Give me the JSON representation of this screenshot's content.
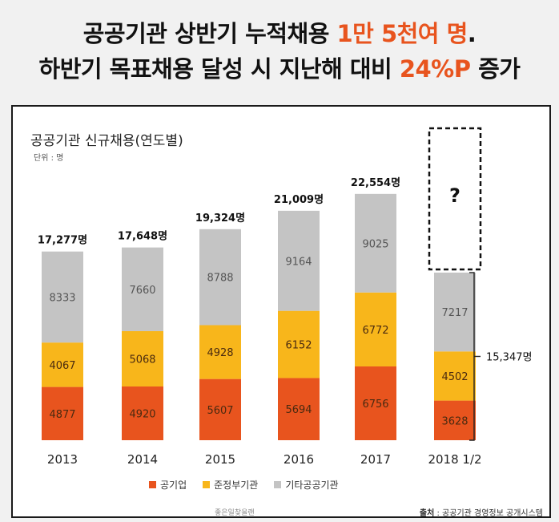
{
  "headline": {
    "line1_prefix": "공공기관 상반기 누적채용 ",
    "line1_accent": "1만 5천여 명",
    "line1_suffix": ".",
    "line2_prefix": "하반기 목표채용 달성 시 지난해 대비 ",
    "line2_accent": "24%P",
    "line2_suffix": " 증가"
  },
  "unit_label": "단위 : 명",
  "watermark": "좋은일찾을랜",
  "source": {
    "label": "출처",
    "text": " : 공공기관 경영정보 공개시스템"
  },
  "colors": {
    "public_enterprise": "#e8541e",
    "quasi_government": "#f8b61b",
    "other_public": "#c4c4c4",
    "accent": "#e8541e"
  },
  "chart_data": {
    "type": "bar",
    "stacked": true,
    "title": "공공기관 신규채용(연도별)",
    "xlabel": "",
    "ylabel": "",
    "ylim": [
      0,
      24000
    ],
    "categories": [
      "2013",
      "2014",
      "2015",
      "2016",
      "2017",
      "2018 1/2"
    ],
    "totals": [
      "17,277명",
      "17,648명",
      "19,324명",
      "21,009명",
      "22,554명",
      ""
    ],
    "series": [
      {
        "name": "공기업",
        "values": [
          4877,
          4920,
          5607,
          5694,
          6756,
          3628
        ]
      },
      {
        "name": "준정부기관",
        "values": [
          4067,
          5068,
          4928,
          6152,
          6772,
          4502
        ]
      },
      {
        "name": "기타공공기관",
        "values": [
          8333,
          7660,
          8788,
          9164,
          9025,
          7217
        ]
      }
    ],
    "annotations": {
      "question_mark": "?",
      "h1_total": "15,347명"
    },
    "legend_position": "bottom",
    "grid": false
  }
}
